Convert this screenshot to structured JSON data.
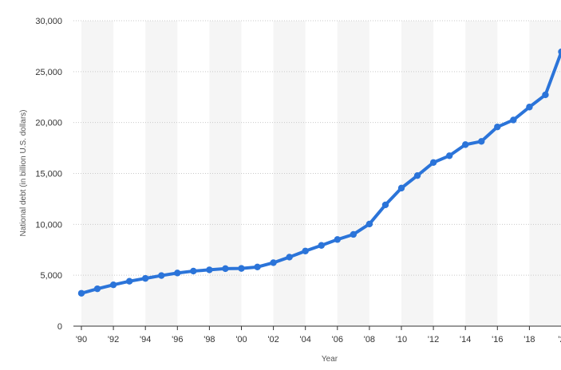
{
  "chart_data": {
    "type": "line",
    "xlabel": "Year",
    "ylabel": "National debt (in billion U.S. dollars)",
    "ylim": [
      0,
      30000
    ],
    "y_ticks": [
      "0",
      "5,000",
      "10,000",
      "15,000",
      "20,000",
      "25,000",
      "30,000"
    ],
    "x_ticks": [
      "'90",
      "'92",
      "'94",
      "'96",
      "'98",
      "'00",
      "'02",
      "'04",
      "'06",
      "'08",
      "'10",
      "'12",
      "'14",
      "'16",
      "'18",
      "'2"
    ],
    "x": [
      1990,
      1991,
      1992,
      1993,
      1994,
      1995,
      1996,
      1997,
      1998,
      1999,
      2000,
      2001,
      2002,
      2003,
      2004,
      2005,
      2006,
      2007,
      2008,
      2009,
      2010,
      2011,
      2012,
      2013,
      2014,
      2015,
      2016,
      2017,
      2018,
      2019,
      2020
    ],
    "series": [
      {
        "values": [
          3230,
          3670,
          4060,
          4410,
          4690,
          4970,
          5220,
          5410,
          5530,
          5650,
          5670,
          5810,
          6230,
          6780,
          7380,
          7930,
          8510,
          9010,
          10030,
          11910,
          13560,
          14790,
          16070,
          16740,
          17830,
          18150,
          19570,
          20250,
          21520,
          22720,
          26950
        ]
      }
    ],
    "grid": true,
    "legend": "none"
  },
  "colors": {
    "line": "#2b74d9",
    "band": "#f5f5f5",
    "grid": "#c9c9c9",
    "baseline": "#333333"
  }
}
